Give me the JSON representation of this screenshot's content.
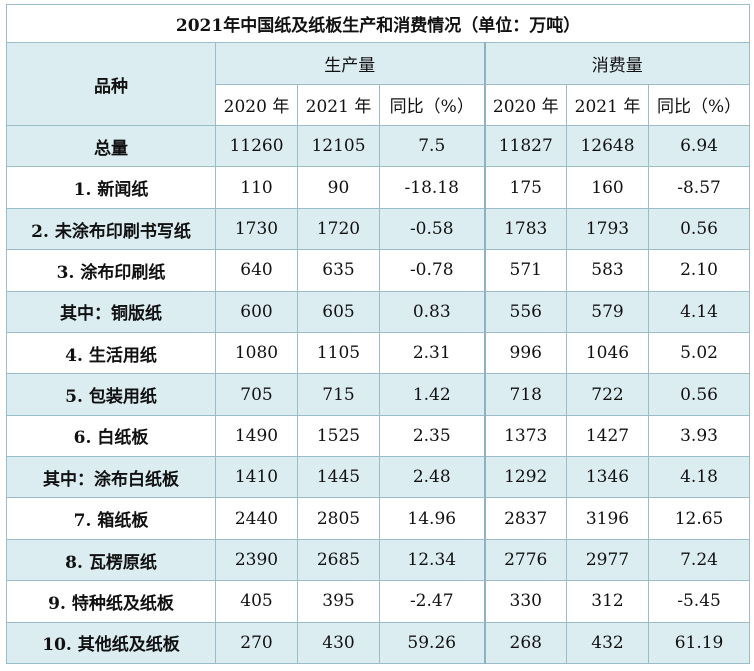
{
  "title": "2021年中国纸及纸板生产和消费情况（单位：万吨）",
  "header": {
    "category": "品种",
    "production": "生产量",
    "consumption": "消费量",
    "year_2020": "2020 年",
    "year_2021": "2021 年",
    "yoy": "同比（%）"
  },
  "rows": [
    {
      "name": "总量",
      "p2020": "11260",
      "p2021": "12105",
      "pyoy": "7.5",
      "c2020": "11827",
      "c2021": "12648",
      "cyoy": "6.94"
    },
    {
      "name": "1. 新闻纸",
      "p2020": "110",
      "p2021": "90",
      "pyoy": "-18.18",
      "c2020": "175",
      "c2021": "160",
      "cyoy": "-8.57"
    },
    {
      "name": "2. 未涂布印刷书写纸",
      "p2020": "1730",
      "p2021": "1720",
      "pyoy": "-0.58",
      "c2020": "1783",
      "c2021": "1793",
      "cyoy": "0.56"
    },
    {
      "name": "3. 涂布印刷纸",
      "p2020": "640",
      "p2021": "635",
      "pyoy": "-0.78",
      "c2020": "571",
      "c2021": "583",
      "cyoy": "2.10"
    },
    {
      "name": "其中：铜版纸",
      "p2020": "600",
      "p2021": "605",
      "pyoy": "0.83",
      "c2020": "556",
      "c2021": "579",
      "cyoy": "4.14"
    },
    {
      "name": "4. 生活用纸",
      "p2020": "1080",
      "p2021": "1105",
      "pyoy": "2.31",
      "c2020": "996",
      "c2021": "1046",
      "cyoy": "5.02"
    },
    {
      "name": "5. 包装用纸",
      "p2020": "705",
      "p2021": "715",
      "pyoy": "1.42",
      "c2020": "718",
      "c2021": "722",
      "cyoy": "0.56"
    },
    {
      "name": "6. 白纸板",
      "p2020": "1490",
      "p2021": "1525",
      "pyoy": "2.35",
      "c2020": "1373",
      "c2021": "1427",
      "cyoy": "3.93"
    },
    {
      "name": "其中：涂布白纸板",
      "p2020": "1410",
      "p2021": "1445",
      "pyoy": "2.48",
      "c2020": "1292",
      "c2021": "1346",
      "cyoy": "4.18"
    },
    {
      "name": "7. 箱纸板",
      "p2020": "2440",
      "p2021": "2805",
      "pyoy": "14.96",
      "c2020": "2837",
      "c2021": "3196",
      "cyoy": "12.65"
    },
    {
      "name": "8. 瓦楞原纸",
      "p2020": "2390",
      "p2021": "2685",
      "pyoy": "12.34",
      "c2020": "2776",
      "c2021": "2977",
      "cyoy": "7.24"
    },
    {
      "name": "9. 特种纸及纸板",
      "p2020": "405",
      "p2021": "395",
      "pyoy": "-2.47",
      "c2020": "330",
      "c2021": "312",
      "cyoy": "-5.45"
    },
    {
      "name": "10. 其他纸及纸板",
      "p2020": "270",
      "p2021": "430",
      "pyoy": "59.26",
      "c2020": "268",
      "c2021": "432",
      "cyoy": "61.19"
    }
  ]
}
